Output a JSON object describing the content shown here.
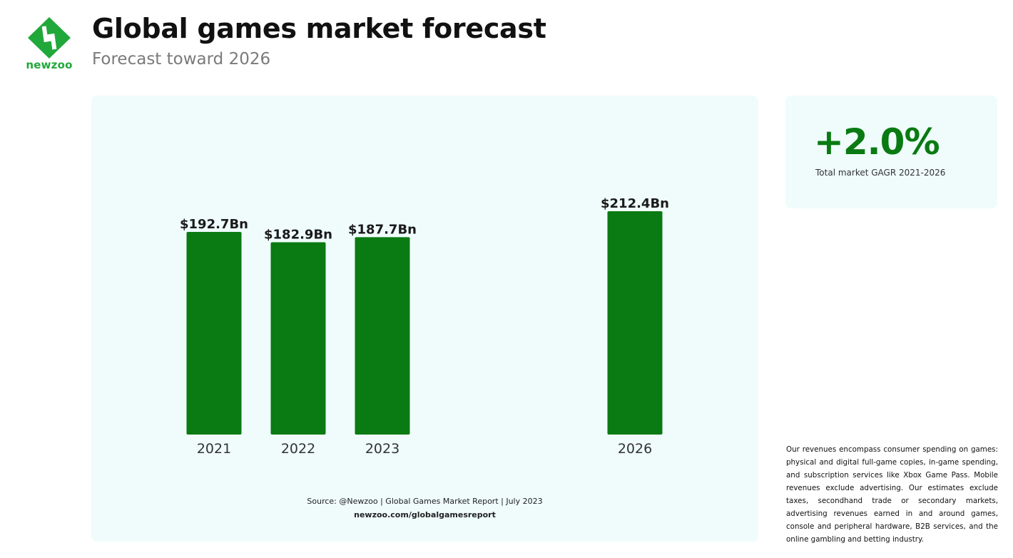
{
  "brand": {
    "logo_text": "newzoo",
    "logo_icon": "newzoo-logo-icon",
    "accent_color": "#0a7a12",
    "logo_color": "#21a83a"
  },
  "header": {
    "title": "Global games market forecast",
    "subtitle": "Forecast toward 2026"
  },
  "chart_data": {
    "type": "bar",
    "categories": [
      "2021",
      "2022",
      "2023",
      "2026"
    ],
    "values": [
      192.7,
      182.9,
      187.7,
      212.4
    ],
    "value_labels": [
      "$192.7Bn",
      "$182.9Bn",
      "$187.7Bn",
      "$212.4Bn"
    ],
    "title": "Global games market forecast",
    "subtitle": "Forecast toward 2026",
    "xlabel": "",
    "ylabel": "",
    "unit": "$Bn",
    "ylim": [
      0,
      212.4
    ],
    "grid": false,
    "legend": "none",
    "bar_color": "#0a7a12",
    "background_color": "#effcfb"
  },
  "chart_footer": {
    "source": "Source: @Newzoo | Global Games Market Report | July 2023",
    "url": "newzoo.com/globalgamesreport"
  },
  "kpi": {
    "value": "+2.0%",
    "label": "Total market GAGR 2021-2026"
  },
  "footnote": "Our revenues encompass consumer spending on games: physical and digital full-game copies, in-game spending, and subscription services like Xbox Game Pass. Mobile revenues exclude advertising. Our estimates exclude taxes, secondhand trade or secondary markets, advertising revenues earned in and around games, console and peripheral hardware, B2B services, and the online gambling and betting industry."
}
